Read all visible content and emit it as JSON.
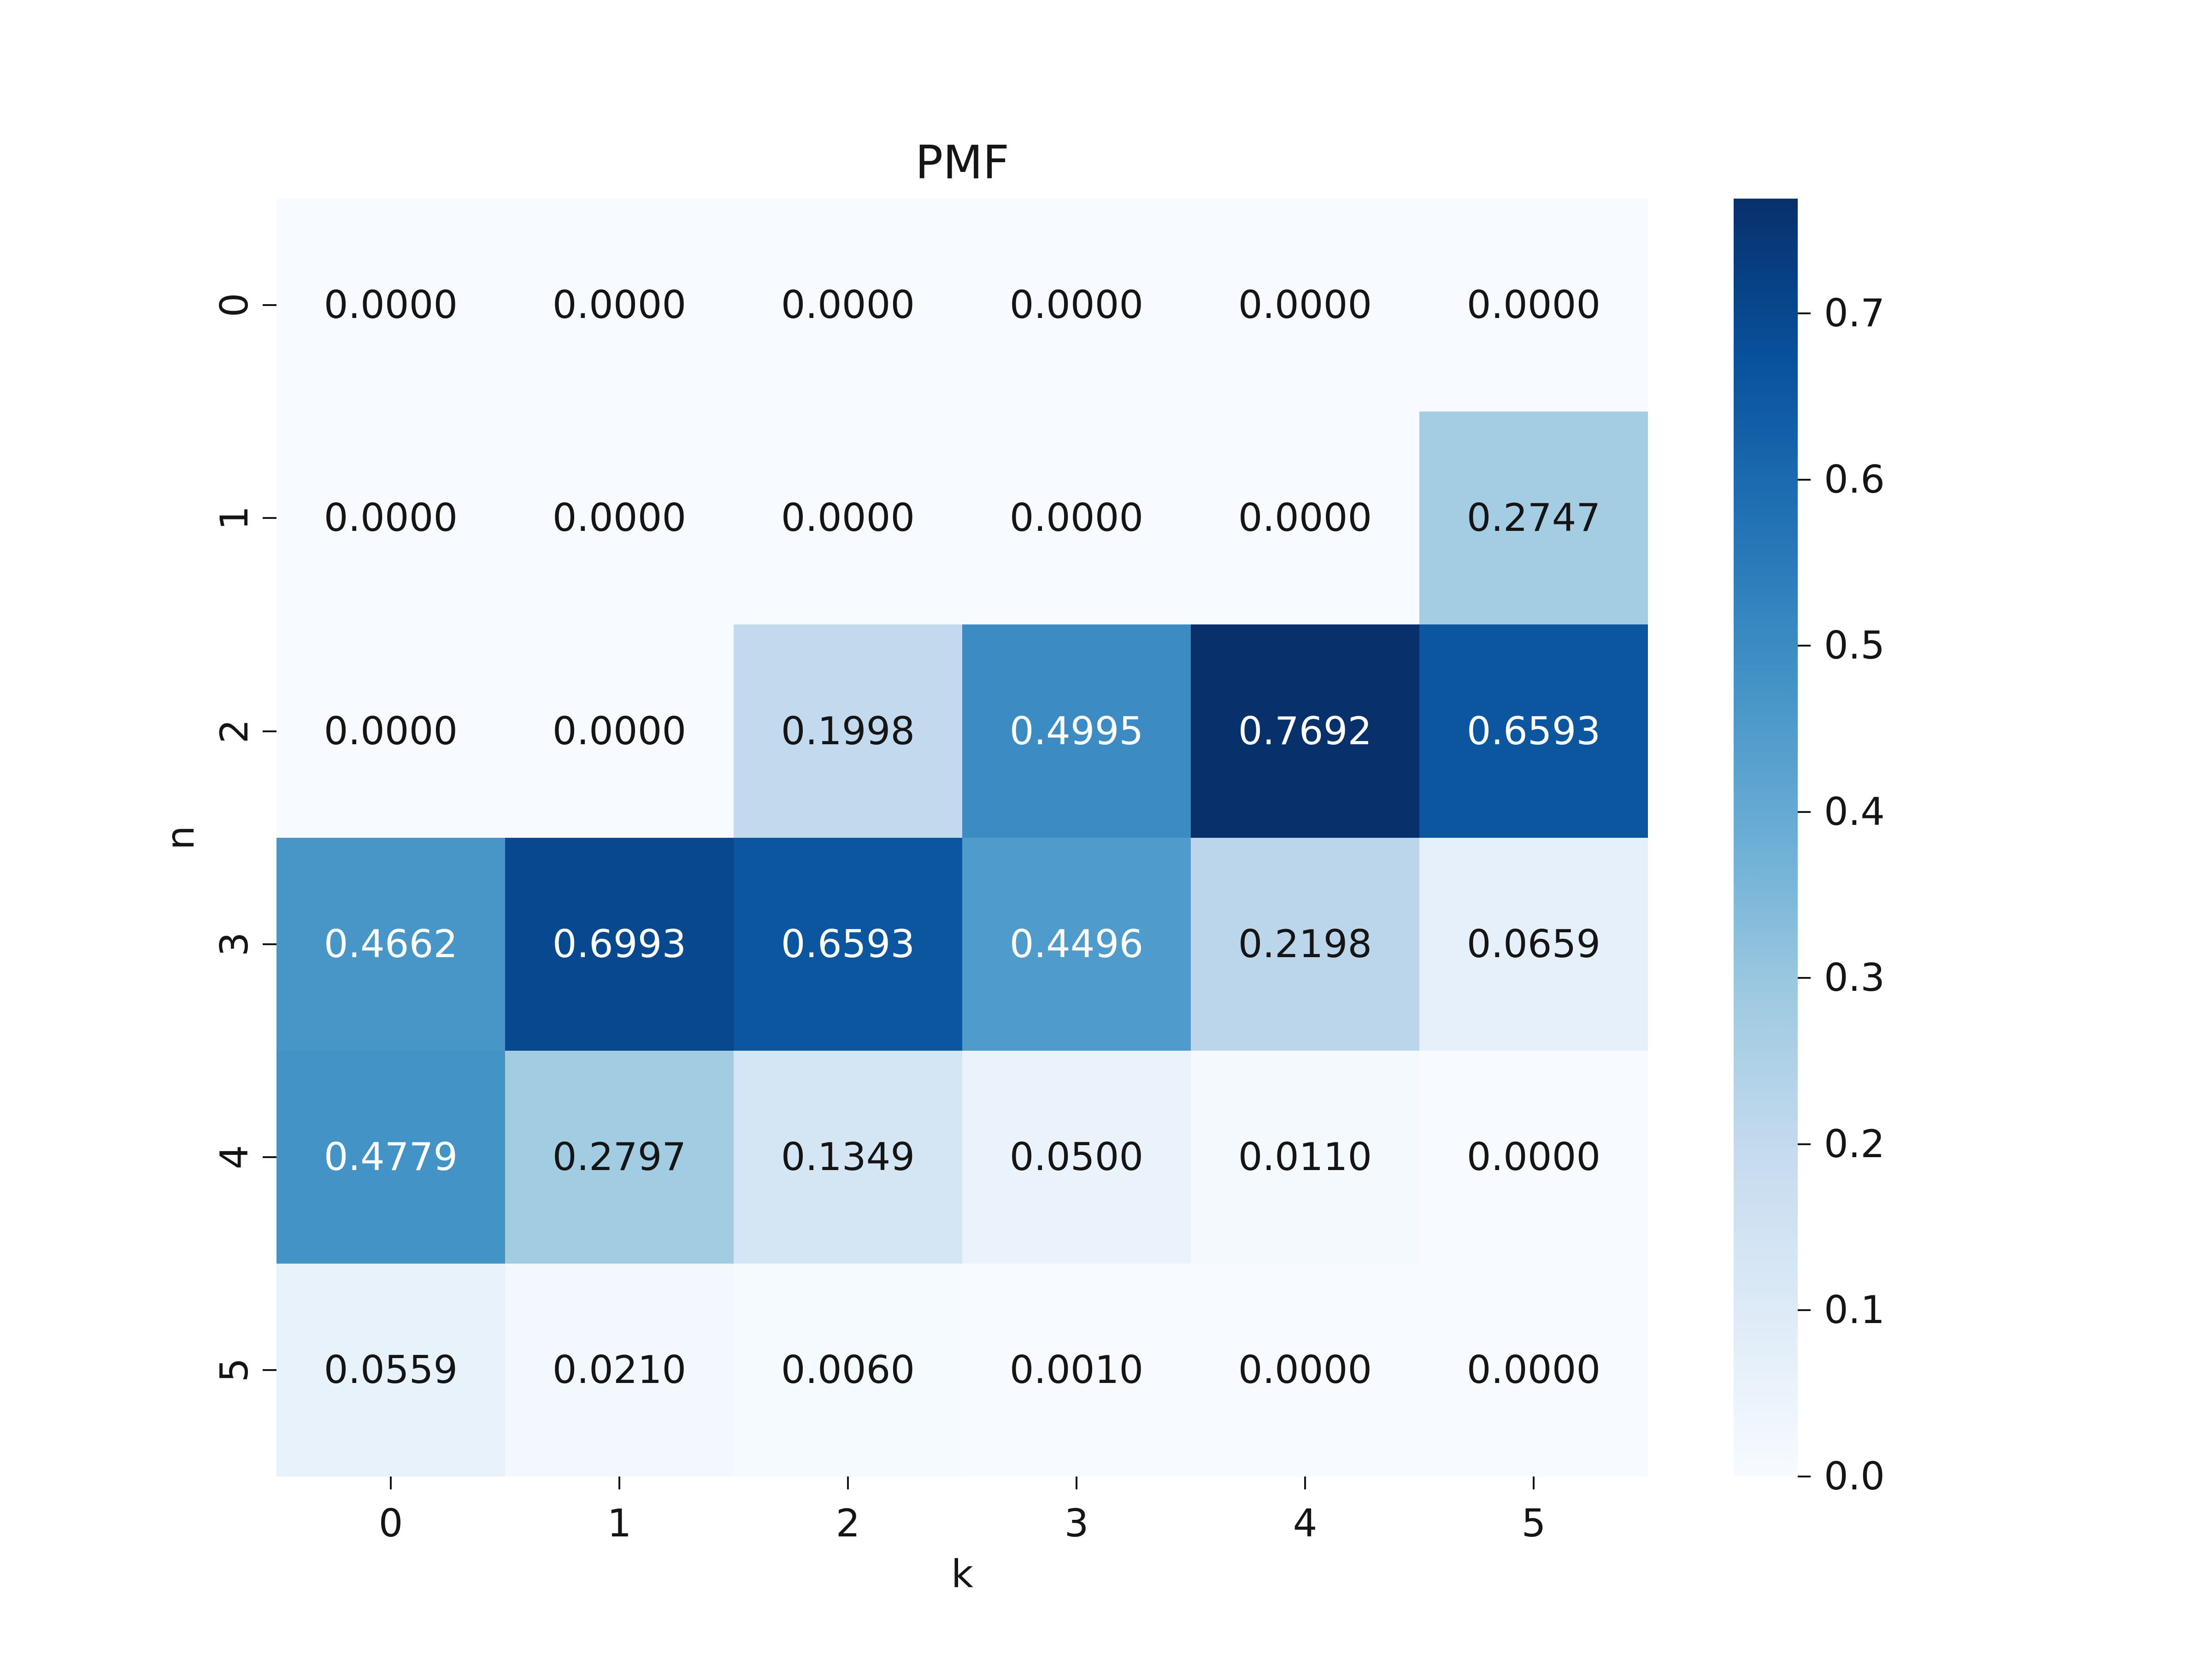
{
  "figure": {
    "background": "#ffffff",
    "text_color": "#151515"
  },
  "chart_data": {
    "type": "heatmap",
    "title": "PMF",
    "xlabel": "k",
    "ylabel": "n",
    "x_tick_labels": [
      "0",
      "1",
      "2",
      "3",
      "4",
      "5"
    ],
    "y_tick_labels": [
      "0",
      "1",
      "2",
      "3",
      "4",
      "5"
    ],
    "values": [
      [
        0.0,
        0.0,
        0.0,
        0.0,
        0.0,
        0.0
      ],
      [
        0.0,
        0.0,
        0.0,
        0.0,
        0.0,
        0.2747
      ],
      [
        0.0,
        0.0,
        0.1998,
        0.4995,
        0.7692,
        0.6593
      ],
      [
        0.4662,
        0.6993,
        0.6593,
        0.4496,
        0.2198,
        0.0659
      ],
      [
        0.4779,
        0.2797,
        0.1349,
        0.05,
        0.011,
        0.0
      ],
      [
        0.0559,
        0.021,
        0.006,
        0.001,
        0.0,
        0.0
      ]
    ],
    "cell_labels": [
      [
        "0.0000",
        "0.0000",
        "0.0000",
        "0.0000",
        "0.0000",
        "0.0000"
      ],
      [
        "0.0000",
        "0.0000",
        "0.0000",
        "0.0000",
        "0.0000",
        "0.2747"
      ],
      [
        "0.0000",
        "0.0000",
        "0.1998",
        "0.4995",
        "0.7692",
        "0.6593"
      ],
      [
        "0.4662",
        "0.6993",
        "0.6593",
        "0.4496",
        "0.2198",
        "0.0659"
      ],
      [
        "0.4779",
        "0.2797",
        "0.1349",
        "0.0500",
        "0.0110",
        "0.0000"
      ],
      [
        "0.0559",
        "0.0210",
        "0.0060",
        "0.0010",
        "0.0000",
        "0.0000"
      ]
    ],
    "vmin": 0.0,
    "vmax": 0.7692,
    "colormap": "Blues",
    "colormap_anchors": [
      "#f7fbff",
      "#deebf7",
      "#c6dbef",
      "#9ecae1",
      "#6baed6",
      "#4292c6",
      "#2171b5",
      "#08519c",
      "#08306b"
    ],
    "colorbar_tick_labels": [
      "0.0",
      "0.1",
      "0.2",
      "0.3",
      "0.4",
      "0.5",
      "0.6",
      "0.7"
    ],
    "legend_position": "right-colorbar",
    "grid": false,
    "annotation_colors": {
      "dark_text": "#151515",
      "light_text": "#ffffff"
    }
  }
}
